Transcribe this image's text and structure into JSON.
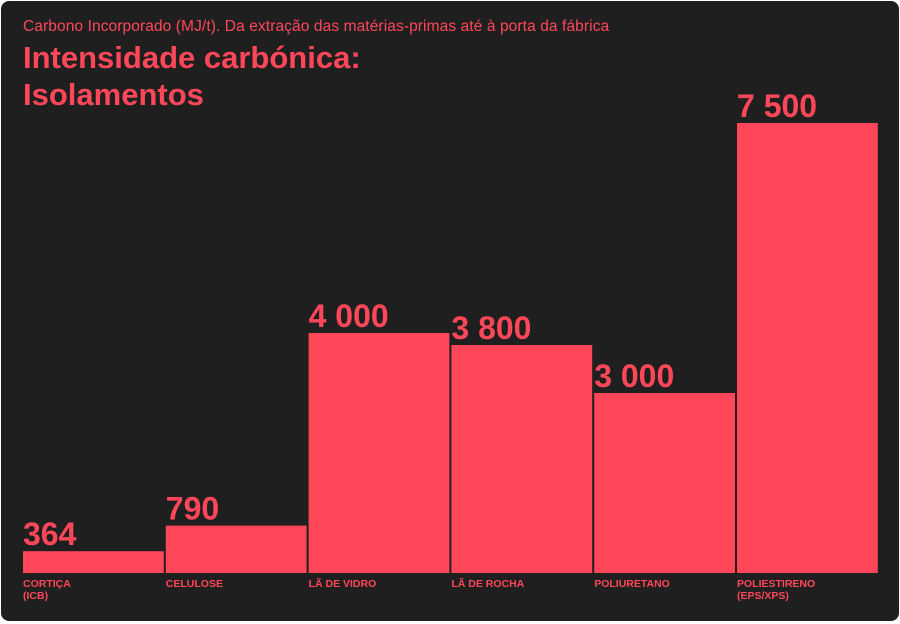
{
  "colors": {
    "background": "#1f1f1f",
    "accent": "#ff4759"
  },
  "chart_data": {
    "type": "bar",
    "subtitle": "Carbono Incorporado (MJ/t). Da extração das matérias-primas até à porta da fábrica",
    "title_lines": [
      "Intensidade carbónica:",
      "Isolamentos"
    ],
    "categories": [
      [
        "CORTIÇA",
        "(ICB)"
      ],
      [
        "CELULOSE"
      ],
      [
        "LÃ DE VIDRO"
      ],
      [
        "LÃ DE ROCHA"
      ],
      [
        "POLIURETANO"
      ],
      [
        "POLIESTIRENO",
        "(EPS/XPS)"
      ]
    ],
    "values": [
      364,
      790,
      4000,
      3800,
      3000,
      7500
    ],
    "value_labels": [
      "364",
      "790",
      "4 000",
      "3 800",
      "3 000",
      "7 500"
    ],
    "ylim": [
      0,
      7500
    ],
    "grid": false,
    "legend": "none"
  }
}
